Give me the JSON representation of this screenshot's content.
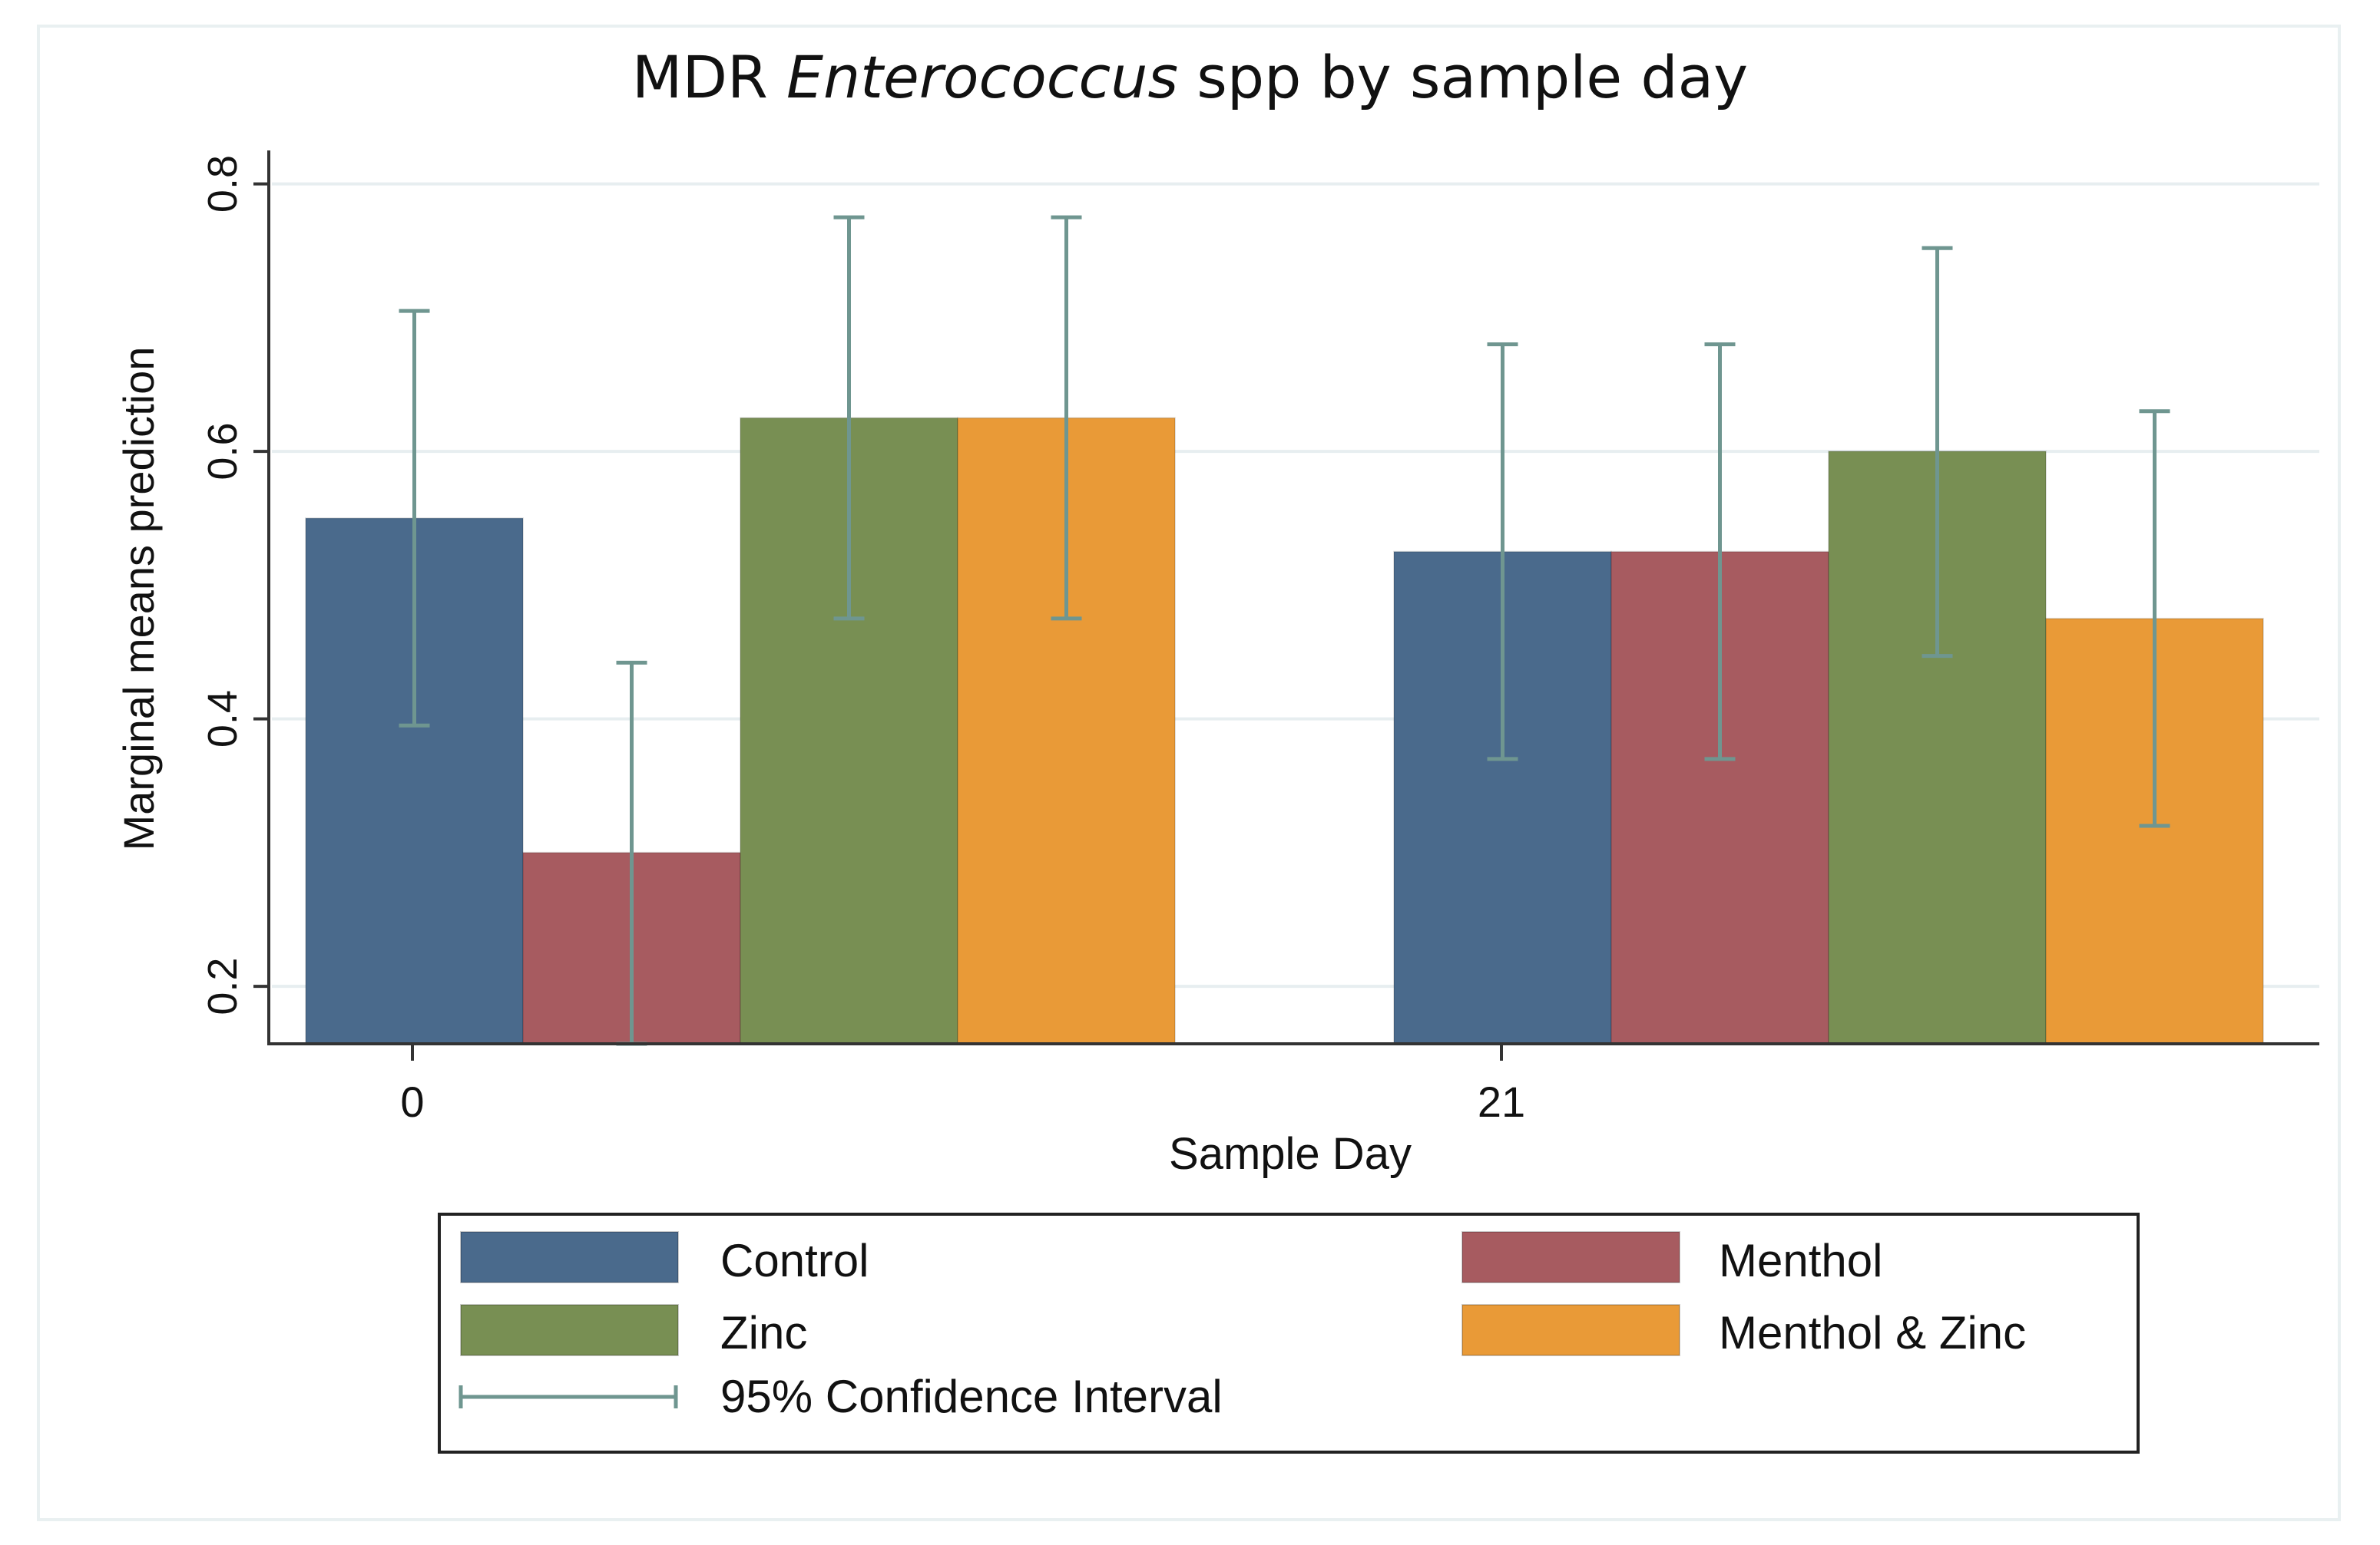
{
  "chart_data": {
    "type": "bar",
    "title_prefix": "MDR",
    "title_italic": "Enterococcus",
    "title_suffix": "spp by sample day",
    "xlabel": "Sample Day",
    "ylabel": "Marginal means prediction",
    "categories": [
      "0",
      "21"
    ],
    "ylim": [
      0.157,
      0.825
    ],
    "yticks": [
      0.2,
      0.4,
      0.6,
      0.8
    ],
    "ytick_labels": [
      "0.2",
      "0.4",
      "0.6",
      "0.8"
    ],
    "bar_base": 0.157,
    "series": [
      {
        "name": "Control",
        "color": "#4a6a8c",
        "values": [
          0.55,
          0.525
        ],
        "ci_low": [
          0.395,
          0.37
        ],
        "ci_high": [
          0.705,
          0.68
        ]
      },
      {
        "name": "Menthol",
        "color": "#a75b60",
        "values": [
          0.3,
          0.525
        ],
        "ci_low": [
          0.157,
          0.37
        ],
        "ci_high": [
          0.442,
          0.68
        ]
      },
      {
        "name": "Zinc",
        "color": "#788f53",
        "values": [
          0.625,
          0.6
        ],
        "ci_low": [
          0.475,
          0.447
        ],
        "ci_high": [
          0.775,
          0.752
        ]
      },
      {
        "name": "Menthol & Zinc",
        "color": "#e99a37",
        "values": [
          0.625,
          0.475
        ],
        "ci_low": [
          0.475,
          0.32
        ],
        "ci_high": [
          0.775,
          0.63
        ]
      }
    ],
    "ci_label": "95% Confidence Interval",
    "ci_color": "#6f9690",
    "grid": true,
    "legend_position": "bottom"
  }
}
